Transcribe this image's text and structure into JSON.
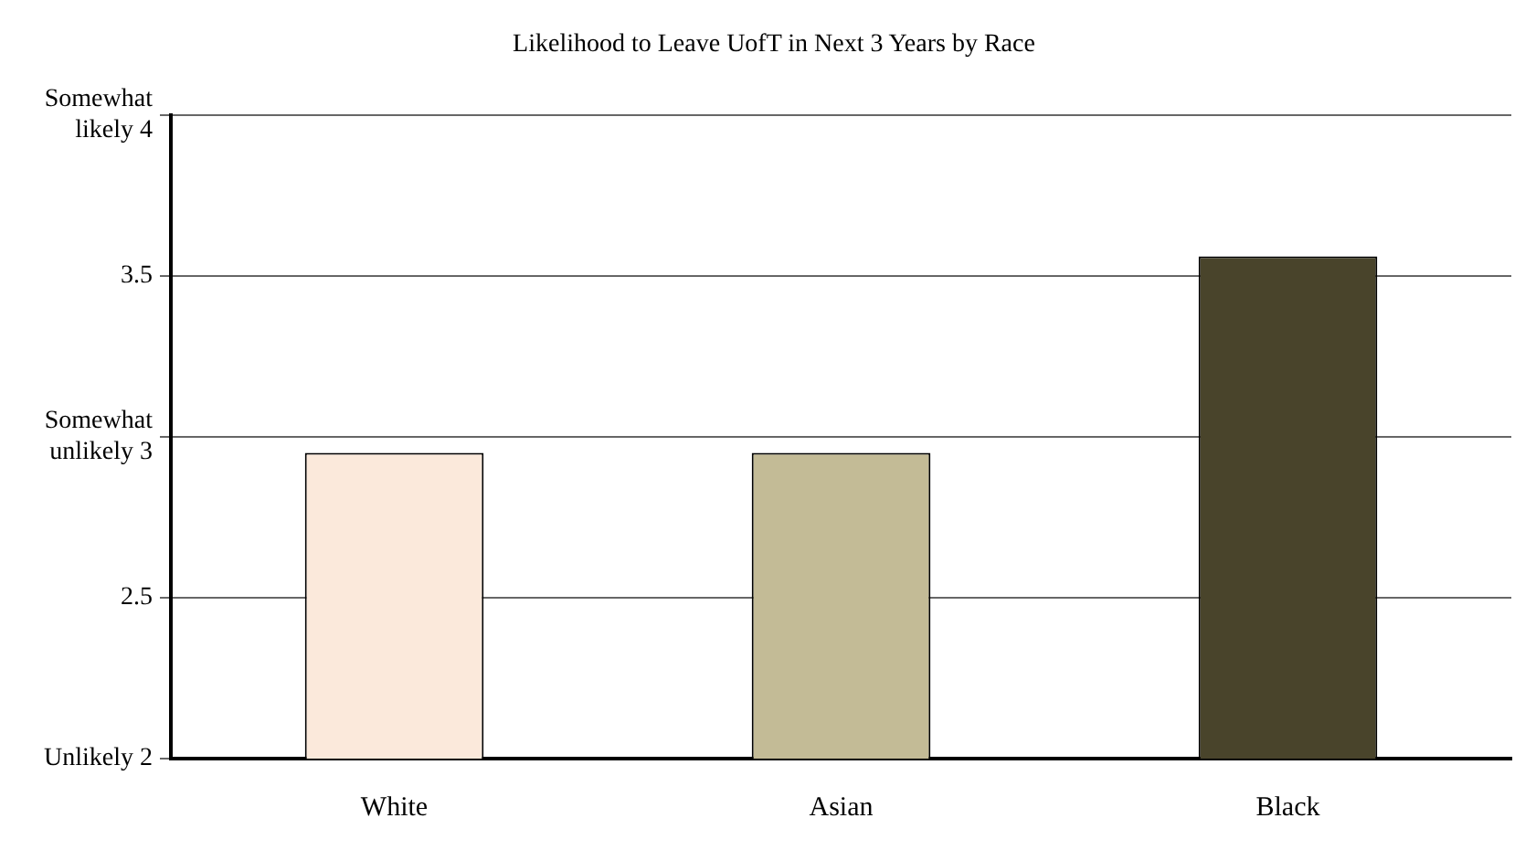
{
  "chart_data": {
    "type": "bar",
    "title": "Likelihood to Leave UofT in Next 3 Years by Race",
    "categories": [
      "White",
      "Asian",
      "Black"
    ],
    "values": [
      2.95,
      2.95,
      3.56
    ],
    "colors": [
      "#fbe9db",
      "#c3bb96",
      "#49442b"
    ],
    "ylim": [
      2,
      4
    ],
    "yticks": [
      {
        "value": 2,
        "label": "Unlikely 2"
      },
      2.5,
      {
        "value": 3,
        "label": "Somewhat unlikely 3"
      },
      3.5,
      {
        "value": 4,
        "label": "Somewhat likely 4"
      }
    ],
    "grid": "y"
  }
}
